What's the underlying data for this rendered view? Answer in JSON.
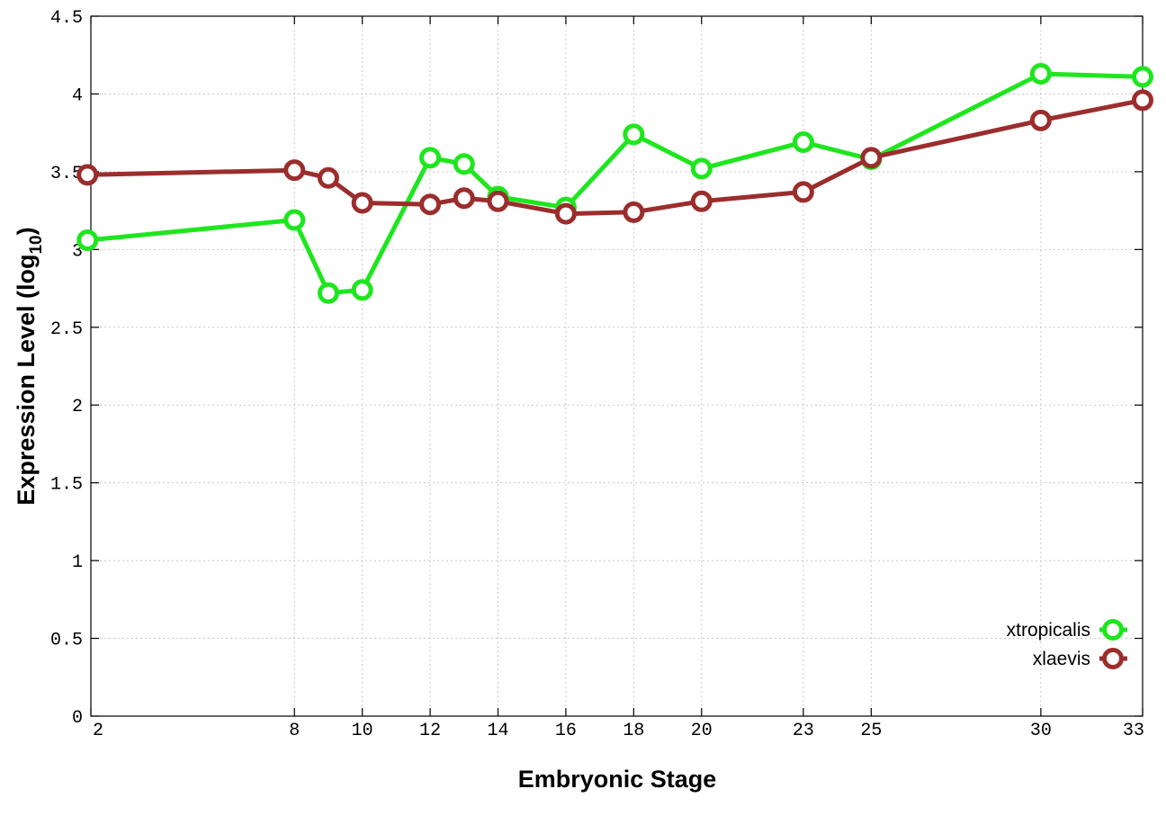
{
  "chart_data": {
    "type": "line",
    "xlabel": "Embryonic Stage",
    "ylabel_main": "Expression Level (log",
    "ylabel_sub": "10",
    "ylabel_close": ")",
    "xlim": [
      2,
      33
    ],
    "ylim": [
      0,
      4.5
    ],
    "x_ticks": [
      2,
      8,
      10,
      12,
      14,
      16,
      18,
      20,
      23,
      25,
      30,
      33
    ],
    "x_tick_labels": [
      "2",
      "8",
      "10",
      "12",
      "14",
      "16",
      "18",
      "20",
      "23",
      "25",
      "30",
      "33"
    ],
    "y_ticks": [
      0,
      0.5,
      1,
      1.5,
      2,
      2.5,
      3,
      3.5,
      4,
      4.5
    ],
    "y_tick_labels": [
      "0",
      "0.5",
      "1",
      "1.5",
      "2",
      "2.5",
      "3",
      "3.5",
      "4",
      "4.5"
    ],
    "grid": true,
    "legend_position": "bottom-right",
    "series": [
      {
        "name": "xtropicalis",
        "color": "#1ee61e",
        "points": [
          [
            1.9,
            3.06
          ],
          [
            8,
            3.19
          ],
          [
            9,
            2.72
          ],
          [
            10,
            2.74
          ],
          [
            12,
            3.59
          ],
          [
            13,
            3.55
          ],
          [
            14,
            3.34
          ],
          [
            16,
            3.27
          ],
          [
            18,
            3.74
          ],
          [
            20,
            3.52
          ],
          [
            23,
            3.69
          ],
          [
            25,
            3.58
          ],
          [
            30,
            4.13
          ],
          [
            33,
            4.11
          ]
        ]
      },
      {
        "name": "xlaevis",
        "color": "#9b2d2d",
        "points": [
          [
            1.9,
            3.48
          ],
          [
            8,
            3.51
          ],
          [
            9,
            3.46
          ],
          [
            10,
            3.3
          ],
          [
            12,
            3.29
          ],
          [
            13,
            3.33
          ],
          [
            14,
            3.31
          ],
          [
            16,
            3.23
          ],
          [
            18,
            3.24
          ],
          [
            20,
            3.31
          ],
          [
            23,
            3.37
          ],
          [
            25,
            3.59
          ],
          [
            30,
            3.83
          ],
          [
            33,
            3.96
          ]
        ]
      }
    ]
  }
}
